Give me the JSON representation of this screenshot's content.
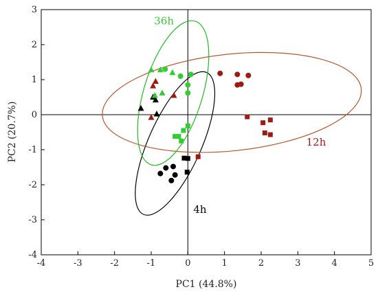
{
  "chart_data": {
    "type": "scatter",
    "title": "",
    "xlabel": "PC1 (44.8%)",
    "ylabel": "PC2 (20.7%)",
    "xlim": [
      -4,
      5
    ],
    "ylim": [
      -4,
      3
    ],
    "xticks": [
      "-4",
      "-3",
      "-2",
      "-1",
      "0",
      "1",
      "2",
      "3",
      "4",
      "5"
    ],
    "yticks": [
      "-4",
      "-3",
      "-2",
      "-1",
      "0",
      "1",
      "2",
      "3"
    ],
    "grid": false,
    "colors": {
      "4h": "#000000",
      "12h": "#9b1c14",
      "36h": "#33cc33",
      "ellipse_4h": "#000000",
      "ellipse_12h": "#b8562e",
      "ellipse_36h": "#22bb22"
    },
    "ellipses": [
      {
        "label": "4h",
        "cx": -0.35,
        "cy": -0.82,
        "rx": 2.12,
        "ry": 0.72,
        "angle_deg": -66,
        "color_key": "ellipse_4h"
      },
      {
        "label": "12h",
        "cx": 1.2,
        "cy": 0.35,
        "rx": 3.55,
        "ry": 1.32,
        "angle_deg": -6,
        "color_key": "ellipse_12h"
      },
      {
        "label": "36h",
        "cx": -0.4,
        "cy": 0.62,
        "rx": 2.05,
        "ry": 0.8,
        "angle_deg": -73,
        "color_key": "ellipse_36h"
      }
    ],
    "ellipse_labels": [
      {
        "text": "4h",
        "x": 0.33,
        "y": -2.8,
        "color_key": "4h"
      },
      {
        "text": "12h",
        "x": 3.5,
        "y": -0.88,
        "color_key": "12h"
      },
      {
        "text": "36h",
        "x": -0.65,
        "y": 2.58,
        "color_key": "36h"
      }
    ],
    "series": [
      {
        "group": "4h",
        "marker": "triangle",
        "points": [
          [
            -1.28,
            0.18
          ],
          [
            -0.95,
            0.5
          ],
          [
            -0.88,
            0.42
          ],
          [
            -0.85,
            0.02
          ]
        ]
      },
      {
        "group": "4h",
        "marker": "square",
        "points": [
          [
            -0.1,
            -1.24
          ],
          [
            0.0,
            -1.25
          ],
          [
            -0.02,
            -1.64
          ]
        ]
      },
      {
        "group": "4h",
        "marker": "circle",
        "points": [
          [
            -0.6,
            -1.52
          ],
          [
            -0.4,
            -1.48
          ],
          [
            -0.75,
            -1.68
          ],
          [
            -0.45,
            -1.88
          ],
          [
            -0.35,
            -1.72
          ]
        ]
      },
      {
        "group": "12h",
        "marker": "triangle",
        "points": [
          [
            -0.88,
            0.95
          ],
          [
            -0.95,
            0.82
          ],
          [
            -0.38,
            0.55
          ],
          [
            -1.0,
            -0.08
          ]
        ]
      },
      {
        "group": "12h",
        "marker": "square",
        "points": [
          [
            0.28,
            -1.2
          ],
          [
            1.62,
            -0.06
          ],
          [
            2.05,
            -0.23
          ],
          [
            2.25,
            -0.15
          ],
          [
            2.1,
            -0.52
          ],
          [
            2.25,
            -0.57
          ]
        ]
      },
      {
        "group": "12h",
        "marker": "circle",
        "points": [
          [
            0.88,
            1.18
          ],
          [
            1.35,
            1.15
          ],
          [
            1.65,
            1.12
          ],
          [
            1.35,
            0.85
          ],
          [
            1.45,
            0.87
          ]
        ]
      },
      {
        "group": "36h",
        "marker": "triangle",
        "points": [
          [
            -1.0,
            1.28
          ],
          [
            -0.75,
            1.28
          ],
          [
            -0.42,
            1.2
          ],
          [
            -0.7,
            0.62
          ],
          [
            -0.9,
            0.55
          ]
        ]
      },
      {
        "group": "36h",
        "marker": "square",
        "points": [
          [
            0.0,
            -0.32
          ],
          [
            -0.12,
            -0.45
          ],
          [
            -0.35,
            -0.62
          ],
          [
            -0.25,
            -0.62
          ],
          [
            -0.18,
            -0.75
          ]
        ]
      },
      {
        "group": "36h",
        "marker": "circle",
        "points": [
          [
            -0.62,
            1.3
          ],
          [
            -0.2,
            1.1
          ],
          [
            0.08,
            1.15
          ],
          [
            0.0,
            0.85
          ],
          [
            0.0,
            0.62
          ]
        ]
      }
    ]
  }
}
